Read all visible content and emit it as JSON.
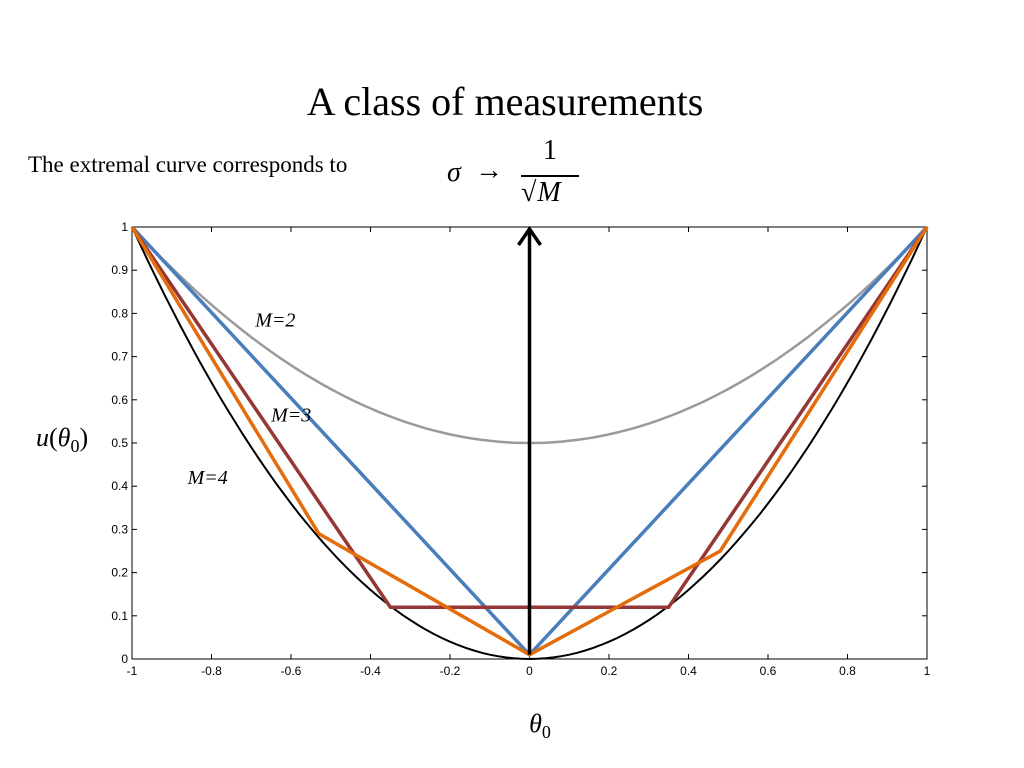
{
  "slide": {
    "title": "A class of measurements",
    "subtitle": "The extremal curve corresponds to",
    "formula": {
      "lhs": "σ",
      "arrow": "→",
      "numerator": "1",
      "denominator_var": "M"
    }
  },
  "chart_data": {
    "type": "line",
    "xlabel": "θ0",
    "ylabel": "u(θ0)",
    "xlim": [
      -1,
      1
    ],
    "ylim": [
      0,
      1
    ],
    "xticks": [
      -1,
      -0.8,
      -0.6,
      -0.4,
      -0.2,
      0,
      0.2,
      0.4,
      0.6,
      0.8,
      1
    ],
    "xtick_labels": [
      "-1",
      "-0.8",
      "-0.6",
      "-0.4",
      "-0.2",
      "0",
      "0.2",
      "0.4",
      "0.6",
      "0.8",
      "1"
    ],
    "yticks": [
      0,
      0.1,
      0.2,
      0.3,
      0.4,
      0.5,
      0.6,
      0.7,
      0.8,
      0.9,
      1
    ],
    "ytick_labels": [
      "0",
      "0.1",
      "0.2",
      "0.3",
      "0.4",
      "0.5",
      "0.6",
      "0.7",
      "0.8",
      "0.9",
      "1"
    ],
    "grid": false,
    "series": [
      {
        "color": "#888888",
        "x": [
          -1,
          -0.8,
          -0.6,
          -0.4,
          -0.2,
          0,
          0.2,
          0.4,
          0.6,
          0.8,
          1
        ],
        "y": [
          1,
          0.82,
          0.68,
          0.58,
          0.52,
          0.5,
          0.52,
          0.58,
          0.68,
          0.82,
          1
        ]
      },
      {
        "color": "#000000",
        "x": [
          -1,
          -0.8,
          -0.6,
          -0.4,
          -0.2,
          0,
          0.2,
          0.4,
          0.6,
          0.8,
          1
        ],
        "y": [
          1,
          0.64,
          0.36,
          0.16,
          0.04,
          0,
          0.04,
          0.16,
          0.36,
          0.64,
          1
        ]
      },
      {
        "color": "#4a7ebb",
        "x": [
          -1,
          0,
          1
        ],
        "y": [
          1,
          0.01,
          1
        ]
      },
      {
        "color": "#953735",
        "x": [
          -1,
          -0.35,
          0.35,
          1
        ],
        "y": [
          1,
          0.12,
          0.12,
          1
        ]
      },
      {
        "color": "#e46c0a",
        "x": [
          -1,
          -0.53,
          0,
          0.48,
          1
        ],
        "y": [
          1,
          0.29,
          0.01,
          0.25,
          1
        ]
      }
    ],
    "arrow": {
      "x": 0,
      "y_from": 0.01,
      "y_to": 1.0,
      "color": "#000000"
    },
    "annotations": [
      {
        "text": "M=2",
        "x": -0.69,
        "y": 0.77
      },
      {
        "text": "M=3",
        "x": -0.65,
        "y": 0.55
      },
      {
        "text": "M=4",
        "x": -0.86,
        "y": 0.405
      }
    ]
  }
}
